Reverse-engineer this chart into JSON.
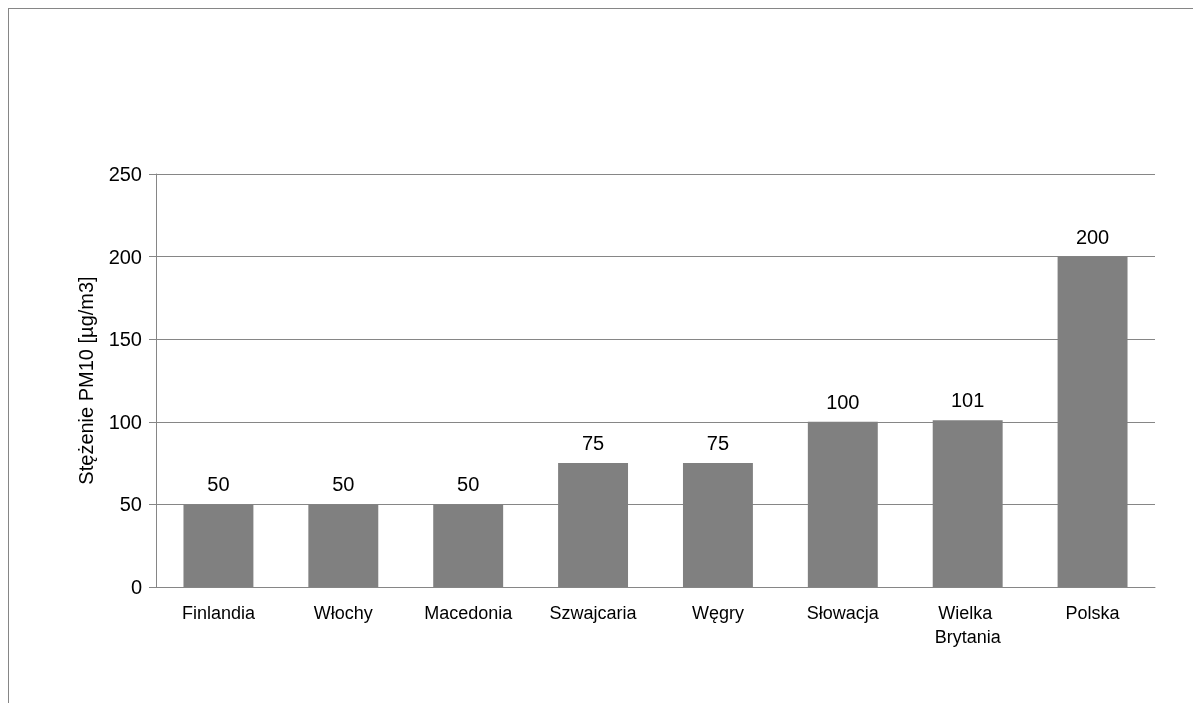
{
  "chart_data": {
    "type": "bar",
    "ylabel": "Stężenie PM10 [µg/m3]",
    "categories": [
      "Finlandia",
      "Włochy",
      "Macedonia",
      "Szwajcaria",
      "Węgry",
      "Słowacja",
      "Wielka Brytania",
      "Polska"
    ],
    "values": [
      50,
      50,
      50,
      75,
      75,
      100,
      101,
      200
    ],
    "color": "#808080",
    "ylim": [
      0,
      250
    ],
    "yticks": [
      0,
      50,
      100,
      150,
      200,
      250
    ],
    "grid": "y",
    "data_labels": true
  }
}
